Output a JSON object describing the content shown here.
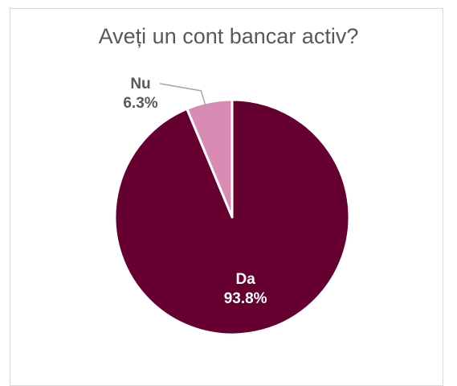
{
  "header_fragment": "",
  "chart_data": {
    "type": "pie",
    "title": "Aveți un cont bancar activ?",
    "slices": [
      {
        "label": "Da",
        "value": 93.8,
        "value_label": "93.8%",
        "color": "#650030",
        "label_color": "#ffffff"
      },
      {
        "label": "Nu",
        "value": 6.3,
        "value_label": "6.3%",
        "color": "#d98cb3",
        "label_color": "#595959"
      }
    ],
    "start": "12 o'clock",
    "direction": "clockwise",
    "legend": "none"
  }
}
